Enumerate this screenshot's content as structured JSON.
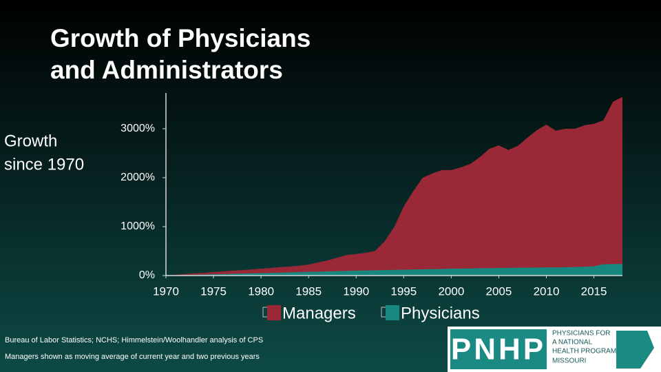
{
  "chart_data": {
    "type": "area",
    "title": [
      "Growth of Physicians",
      "and Administrators"
    ],
    "ylabel": [
      "Growth",
      "since 1970"
    ],
    "x": [
      1970,
      1971,
      1972,
      1973,
      1974,
      1975,
      1976,
      1977,
      1978,
      1979,
      1980,
      1981,
      1982,
      1983,
      1984,
      1985,
      1986,
      1987,
      1988,
      1989,
      1990,
      1991,
      1992,
      1993,
      1994,
      1995,
      1996,
      1997,
      1998,
      1999,
      2000,
      2001,
      2002,
      2003,
      2004,
      2005,
      2006,
      2007,
      2008,
      2009,
      2010,
      2011,
      2012,
      2013,
      2014,
      2015,
      2016,
      2017,
      2018
    ],
    "series": [
      {
        "name": "Managers",
        "color": "#9b2837",
        "values": [
          0,
          15,
          30,
          45,
          55,
          70,
          85,
          100,
          110,
          125,
          140,
          155,
          170,
          185,
          200,
          225,
          270,
          310,
          365,
          420,
          440,
          465,
          505,
          700,
          990,
          1410,
          1720,
          2000,
          2085,
          2155,
          2155,
          2210,
          2280,
          2420,
          2590,
          2660,
          2565,
          2650,
          2815,
          2970,
          3085,
          2960,
          3000,
          3000,
          3070,
          3100,
          3170,
          3550,
          3650
        ]
      },
      {
        "name": "Physicians",
        "color": "#178880",
        "values": [
          0,
          5,
          10,
          15,
          20,
          25,
          30,
          35,
          40,
          45,
          50,
          55,
          60,
          65,
          70,
          75,
          80,
          85,
          90,
          95,
          100,
          104,
          108,
          112,
          116,
          120,
          124,
          128,
          132,
          136,
          140,
          143,
          146,
          149,
          152,
          155,
          158,
          160,
          162,
          164,
          165,
          167,
          170,
          175,
          180,
          190,
          230,
          235,
          235
        ]
      }
    ],
    "xlim": [
      1970,
      2018
    ],
    "xticks": [
      1970,
      1975,
      1980,
      1985,
      1990,
      1995,
      2000,
      2005,
      2010,
      2015
    ],
    "ylim": [
      0,
      3730
    ],
    "yticks": [
      {
        "value": 0,
        "label": "0%"
      },
      {
        "value": 1000,
        "label": "1000%"
      },
      {
        "value": 2000,
        "label": "2000%"
      },
      {
        "value": 3000,
        "label": "3000%"
      }
    ],
    "sources": [
      "Bureau of Labor Statistics; NCHS; Himmelstein/Woolhandler analysis of CPS",
      "Managers shown as moving average of current year and two previous years"
    ]
  },
  "logo": {
    "mark": "PNHP",
    "lines": [
      "PHYSICIANS FOR",
      "A NATIONAL",
      "HEALTH PROGRAM",
      "MISSOURI"
    ]
  }
}
